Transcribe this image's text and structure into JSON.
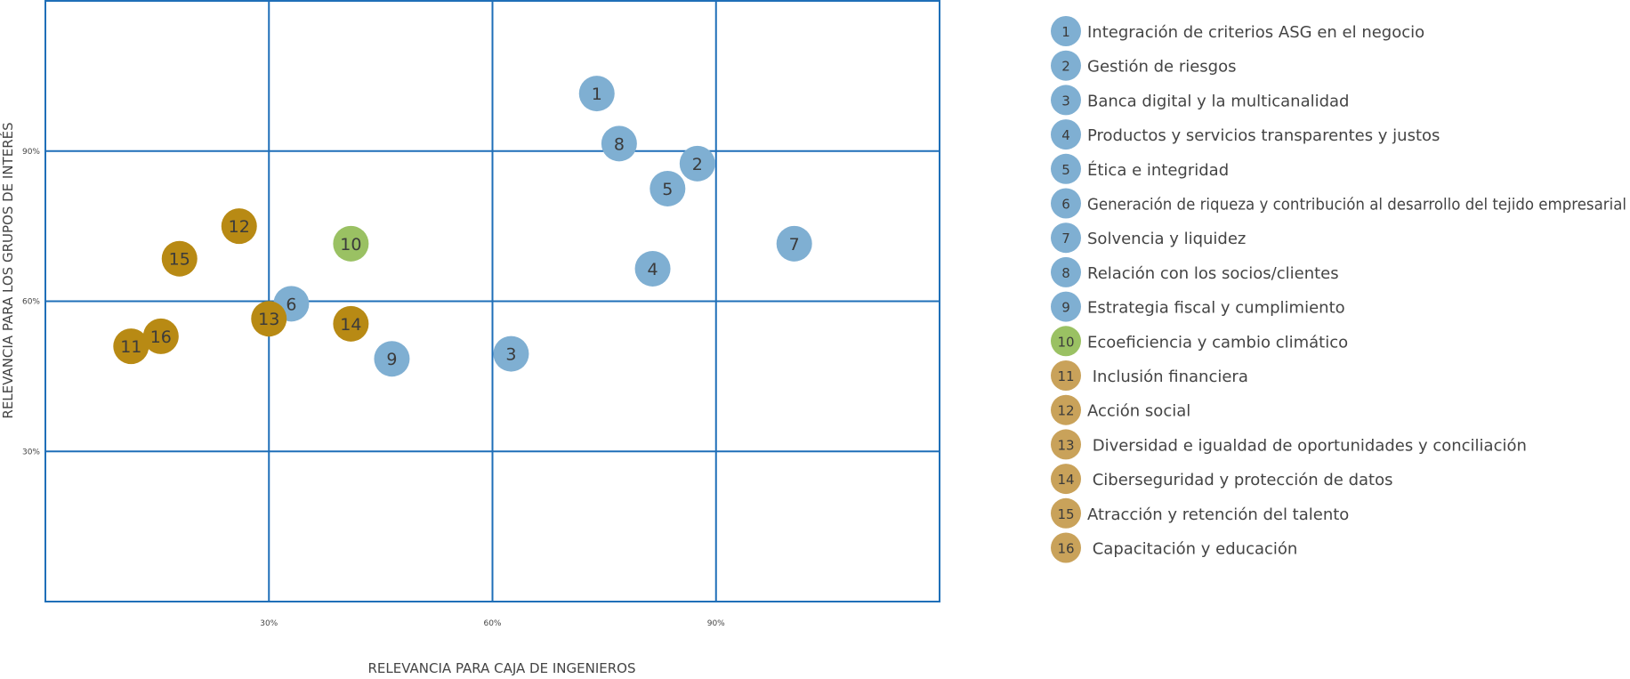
{
  "chart_data": {
    "type": "scatter",
    "xlabel": "RELEVANCIA PARA CAJA DE INGENIEROS",
    "ylabel": "RELEVANCIA PARA LOS GRUPOS DE INTERÉS",
    "xlim": [
      0,
      120
    ],
    "ylim": [
      0,
      120
    ],
    "x_ticks": [
      {
        "value": 30,
        "label": "30%"
      },
      {
        "value": 60,
        "label": "60%"
      },
      {
        "value": 90,
        "label": "90%"
      }
    ],
    "y_ticks": [
      {
        "value": 30,
        "label": "30%"
      },
      {
        "value": 60,
        "label": "60%"
      },
      {
        "value": 90,
        "label": "90%"
      }
    ],
    "grid": true,
    "colors": {
      "grid": "#1f6fb8",
      "blue": "#7fafd2",
      "green": "#9ac163",
      "gold": "#b88a14",
      "gold_legend": "#c9a25a"
    },
    "legend_position": "right",
    "points": [
      {
        "id": "1",
        "x": 74.0,
        "y": 101.5,
        "group": "blue"
      },
      {
        "id": "2",
        "x": 87.5,
        "y": 87.5,
        "group": "blue"
      },
      {
        "id": "3",
        "x": 62.5,
        "y": 49.5,
        "group": "blue"
      },
      {
        "id": "4",
        "x": 81.5,
        "y": 66.5,
        "group": "blue"
      },
      {
        "id": "5",
        "x": 83.5,
        "y": 82.5,
        "group": "blue"
      },
      {
        "id": "6",
        "x": 33.0,
        "y": 59.5,
        "group": "blue"
      },
      {
        "id": "7",
        "x": 100.5,
        "y": 71.5,
        "group": "blue"
      },
      {
        "id": "8",
        "x": 77.0,
        "y": 91.5,
        "group": "blue"
      },
      {
        "id": "9",
        "x": 46.5,
        "y": 48.5,
        "group": "blue"
      },
      {
        "id": "10",
        "x": 41.0,
        "y": 71.5,
        "group": "green"
      },
      {
        "id": "11",
        "x": 11.5,
        "y": 51.0,
        "group": "gold"
      },
      {
        "id": "12",
        "x": 26.0,
        "y": 75.0,
        "group": "gold"
      },
      {
        "id": "13",
        "x": 30.0,
        "y": 56.5,
        "group": "gold"
      },
      {
        "id": "14",
        "x": 41.0,
        "y": 55.5,
        "group": "gold"
      },
      {
        "id": "15",
        "x": 18.0,
        "y": 68.5,
        "group": "gold"
      },
      {
        "id": "16",
        "x": 15.5,
        "y": 53.0,
        "group": "gold"
      }
    ],
    "legend": [
      {
        "num": "1",
        "label": "Integración de criterios ASG en el negocio",
        "group": "blue"
      },
      {
        "num": "2",
        "label": "Gestión de riesgos",
        "group": "blue"
      },
      {
        "num": "3",
        "label": "Banca digital y la multicanalidad",
        "group": "blue"
      },
      {
        "num": "4",
        "label": "Productos y servicios transparentes y justos",
        "group": "blue"
      },
      {
        "num": "5",
        "label": "Ética e integridad",
        "group": "blue"
      },
      {
        "num": "6",
        "label": "Generación de riqueza y contribución al desarrollo del tejido empresarial",
        "group": "blue"
      },
      {
        "num": "7",
        "label": "Solvencia y liquidez",
        "group": "blue"
      },
      {
        "num": "8",
        "label": "Relación con los socios/clientes",
        "group": "blue"
      },
      {
        "num": "9",
        "label": "Estrategia fiscal y cumplimiento",
        "group": "blue"
      },
      {
        "num": "10",
        "label": "Ecoeficiencia y cambio climático",
        "group": "green"
      },
      {
        "num": "11",
        "label": " Inclusión financiera",
        "group": "gold_legend"
      },
      {
        "num": "12",
        "label": "Acción social",
        "group": "gold_legend"
      },
      {
        "num": "13",
        "label": " Diversidad e igualdad de oportunidades y conciliación",
        "group": "gold_legend"
      },
      {
        "num": "14",
        "label": " Ciberseguridad y protección de datos",
        "group": "gold_legend"
      },
      {
        "num": "15",
        "label": "Atracción y retención del talento",
        "group": "gold_legend"
      },
      {
        "num": "16",
        "label": " Capacitación y educación",
        "group": "gold_legend"
      }
    ]
  }
}
